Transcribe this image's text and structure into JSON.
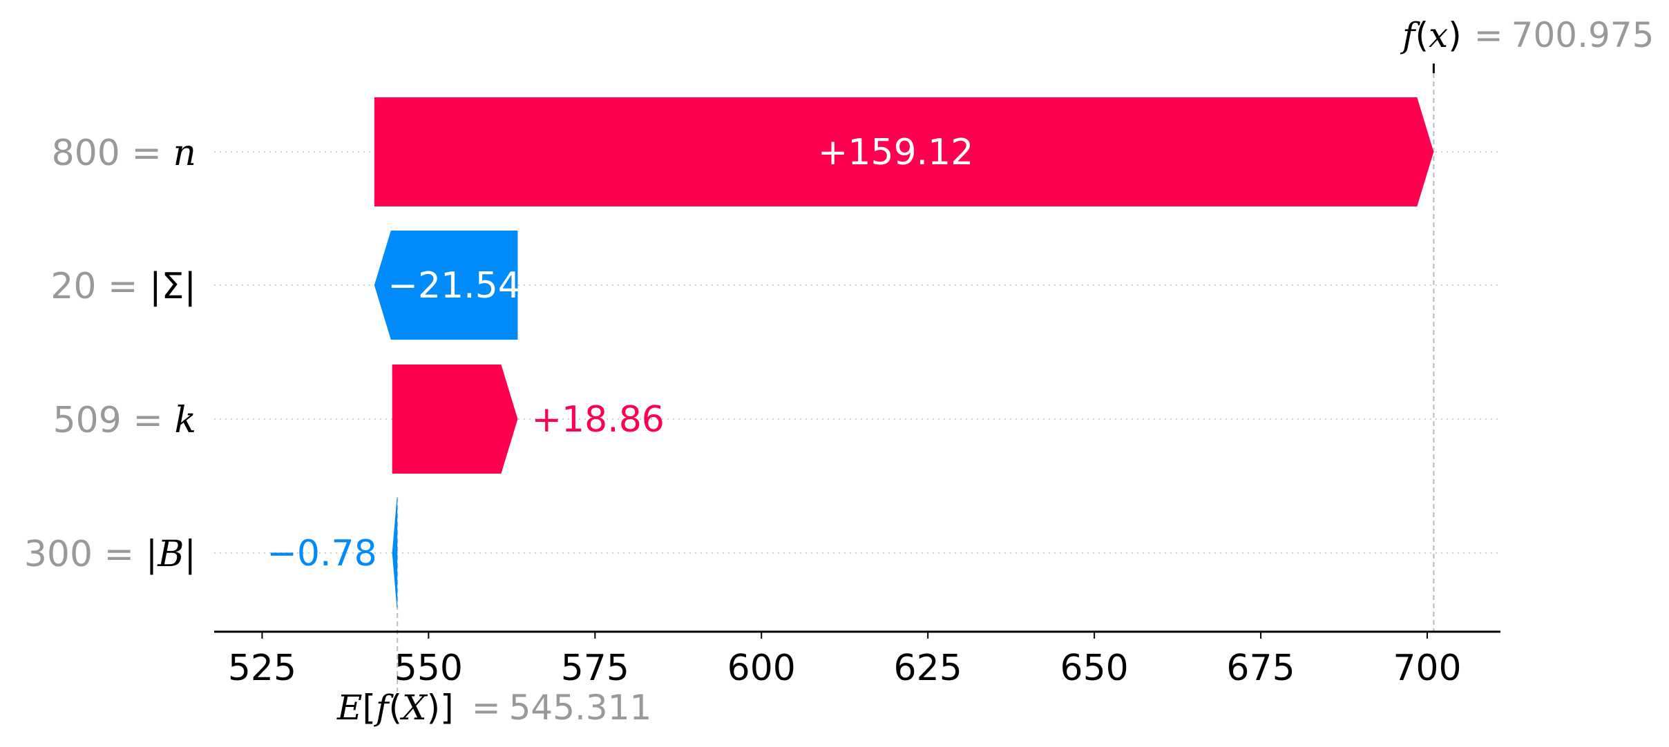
{
  "chart_data": {
    "type": "waterfall",
    "base_value": 545.311,
    "final_value": 700.975,
    "base_label": {
      "math": "E[f(X)]",
      "eq": "=",
      "value": "545.311"
    },
    "final_label": {
      "math": "f(x)",
      "eq": "=",
      "value": "700.975"
    },
    "features": [
      {
        "value": "800",
        "eq": "=",
        "name": "n",
        "contribution": 159.12,
        "label": "+159.12"
      },
      {
        "value": "20",
        "eq": "=",
        "name": "|Σ|",
        "contribution": -21.54,
        "label": "−21.54"
      },
      {
        "value": "509",
        "eq": "=",
        "name": "k",
        "contribution": 18.86,
        "label": "+18.86"
      },
      {
        "value": "300",
        "eq": "=",
        "name": "|B|",
        "contribution": -0.78,
        "label": "−0.78"
      }
    ],
    "x_ticks": [
      "525",
      "550",
      "575",
      "600",
      "625",
      "650",
      "675",
      "700"
    ],
    "x_tick_values": [
      525,
      550,
      575,
      600,
      625,
      650,
      675,
      700
    ],
    "xlim": [
      518,
      711
    ],
    "colors": {
      "positive": "#ff0051",
      "negative": "#008bfb",
      "label_gray": "#999999"
    },
    "grid": "dotted horizontal per feature"
  }
}
